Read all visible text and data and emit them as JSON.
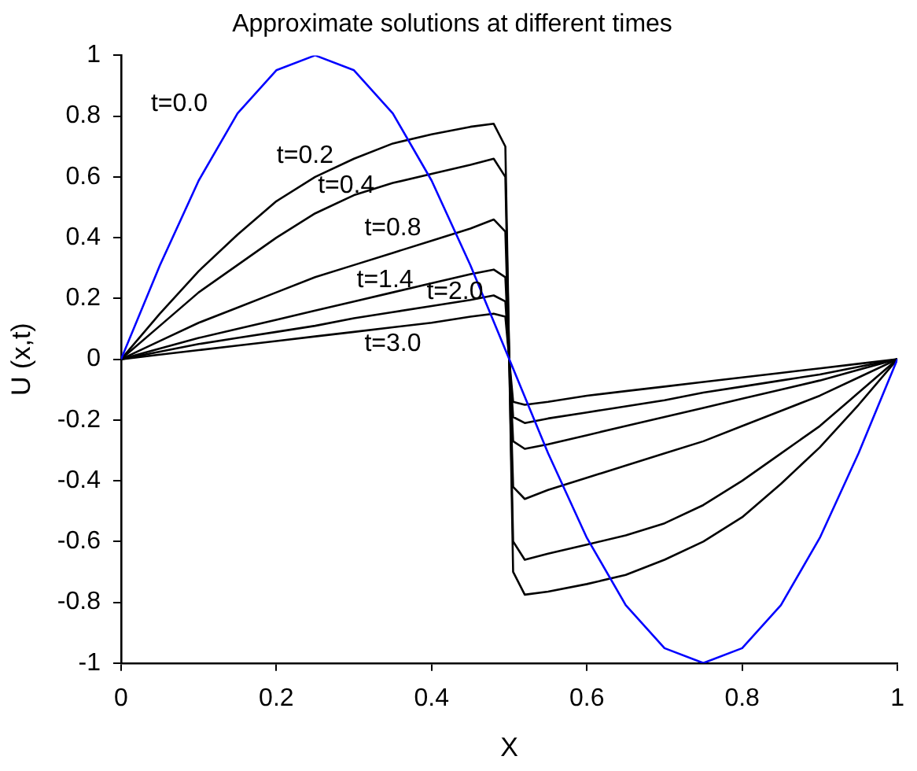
{
  "chart_data": {
    "type": "line",
    "title": "Approximate solutions at different times",
    "xlabel": "X",
    "ylabel": "U (x,t)",
    "x": [
      0,
      0.05,
      0.1,
      0.15,
      0.2,
      0.25,
      0.3,
      0.35,
      0.4,
      0.45,
      0.48,
      0.495,
      0.5,
      0.505,
      0.52,
      0.55,
      0.6,
      0.65,
      0.7,
      0.75,
      0.8,
      0.85,
      0.9,
      0.95,
      1
    ],
    "series": [
      {
        "color": "#0000ff",
        "x": [
          0,
          0.05,
          0.1,
          0.15,
          0.2,
          0.25,
          0.3,
          0.35,
          0.4,
          0.45,
          0.5,
          0.55,
          0.6,
          0.65,
          0.7,
          0.75,
          0.8,
          0.85,
          0.9,
          0.95,
          1
        ],
        "values": [
          0,
          0.309,
          0.588,
          0.809,
          0.951,
          1,
          0.951,
          0.809,
          0.588,
          0.309,
          0,
          -0.309,
          -0.588,
          -0.809,
          -0.951,
          -1,
          -0.951,
          -0.809,
          -0.588,
          -0.309,
          0
        ]
      },
      {
        "color": "#000000",
        "values": [
          0,
          0.15,
          0.29,
          0.41,
          0.52,
          0.6,
          0.66,
          0.71,
          0.74,
          0.765,
          0.775,
          0.7,
          0,
          -0.7,
          -0.775,
          -0.765,
          -0.74,
          -0.71,
          -0.66,
          -0.6,
          -0.52,
          -0.41,
          -0.29,
          -0.15,
          0
        ]
      },
      {
        "color": "#000000",
        "values": [
          0,
          0.11,
          0.22,
          0.31,
          0.4,
          0.48,
          0.54,
          0.58,
          0.61,
          0.64,
          0.66,
          0.6,
          0,
          -0.6,
          -0.66,
          -0.64,
          -0.61,
          -0.58,
          -0.54,
          -0.48,
          -0.4,
          -0.31,
          -0.22,
          -0.11,
          0
        ]
      },
      {
        "color": "#000000",
        "values": [
          0,
          0.06,
          0.12,
          0.17,
          0.22,
          0.27,
          0.31,
          0.35,
          0.39,
          0.43,
          0.46,
          0.42,
          0,
          -0.42,
          -0.46,
          -0.43,
          -0.39,
          -0.35,
          -0.31,
          -0.27,
          -0.22,
          -0.17,
          -0.12,
          -0.06,
          0
        ]
      },
      {
        "color": "#000000",
        "values": [
          0,
          0.035,
          0.07,
          0.1,
          0.13,
          0.16,
          0.19,
          0.22,
          0.25,
          0.28,
          0.295,
          0.27,
          0,
          -0.27,
          -0.295,
          -0.28,
          -0.25,
          -0.22,
          -0.19,
          -0.16,
          -0.13,
          -0.1,
          -0.07,
          -0.035,
          0
        ]
      },
      {
        "color": "#000000",
        "values": [
          0,
          0.025,
          0.05,
          0.07,
          0.09,
          0.11,
          0.135,
          0.155,
          0.175,
          0.195,
          0.21,
          0.19,
          0,
          -0.19,
          -0.21,
          -0.195,
          -0.175,
          -0.155,
          -0.135,
          -0.11,
          -0.09,
          -0.07,
          -0.05,
          -0.025,
          0
        ]
      },
      {
        "color": "#000000",
        "values": [
          0,
          0.015,
          0.03,
          0.045,
          0.06,
          0.075,
          0.09,
          0.105,
          0.12,
          0.14,
          0.15,
          0.14,
          0,
          -0.14,
          -0.15,
          -0.14,
          -0.12,
          -0.105,
          -0.09,
          -0.075,
          -0.06,
          -0.045,
          -0.03,
          -0.015,
          0
        ]
      }
    ],
    "xlim": [
      0,
      1
    ],
    "xticks": [
      0,
      0.2,
      0.4,
      0.6,
      0.8,
      1
    ],
    "ylim": [
      -1,
      1
    ],
    "yticks": [
      -1,
      -0.8,
      -0.6,
      -0.4,
      -0.2,
      0,
      0.2,
      0.4,
      0.6,
      0.8,
      1
    ],
    "grid": false,
    "legend": false,
    "marker": "none",
    "line_style": "solid",
    "annotations": [
      "t=0.0",
      "t=0.2",
      "t=0.4",
      "t=0.8",
      "t=1.4",
      "t=2.0",
      "t=3.0"
    ]
  }
}
